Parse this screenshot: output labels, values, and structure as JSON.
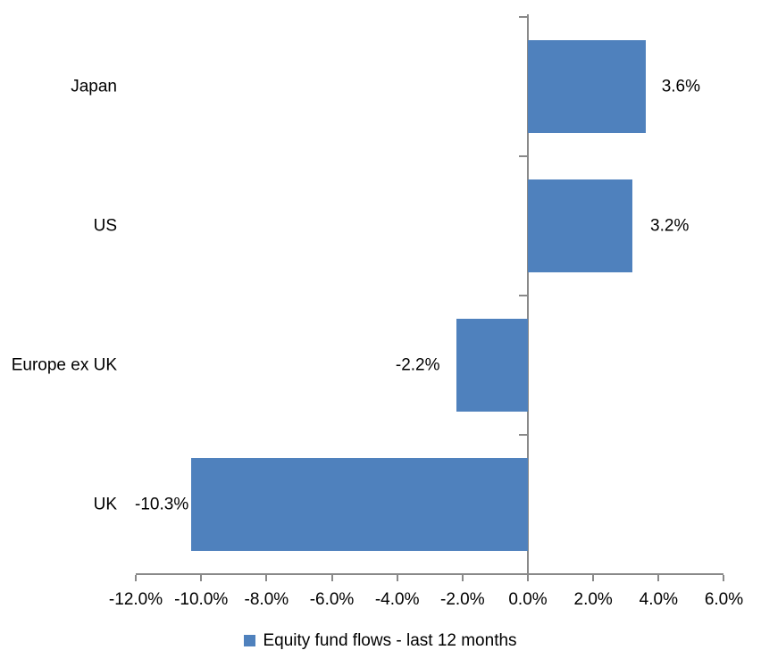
{
  "chart_data": {
    "type": "bar",
    "orientation": "horizontal",
    "title": "",
    "categories": [
      "Japan",
      "US",
      "Europe ex UK",
      "UK"
    ],
    "values": [
      3.6,
      3.2,
      -2.2,
      -10.3
    ],
    "data_labels": [
      "3.6%",
      "3.2%",
      "-2.2%",
      "-10.3%"
    ],
    "series_name": "Equity fund flows - last 12 months",
    "x_ticks": [
      -12,
      -10,
      -8,
      -6,
      -4,
      -2,
      0,
      2,
      4,
      6
    ],
    "x_tick_labels": [
      "-12.0%",
      "-10.0%",
      "-8.0%",
      "-6.0%",
      "-4.0%",
      "-2.0%",
      "0.0%",
      "2.0%",
      "4.0%",
      "6.0%"
    ],
    "xlim": [
      -12,
      6
    ],
    "grid": false,
    "legend_position": "bottom",
    "colors": {
      "bar": "#4F81BD",
      "axis": "#898989",
      "text": "#000000",
      "background": "#ffffff"
    },
    "legend": {
      "swatch_color": "#4F81BD",
      "label": "Equity fund flows - last 12 months"
    }
  }
}
